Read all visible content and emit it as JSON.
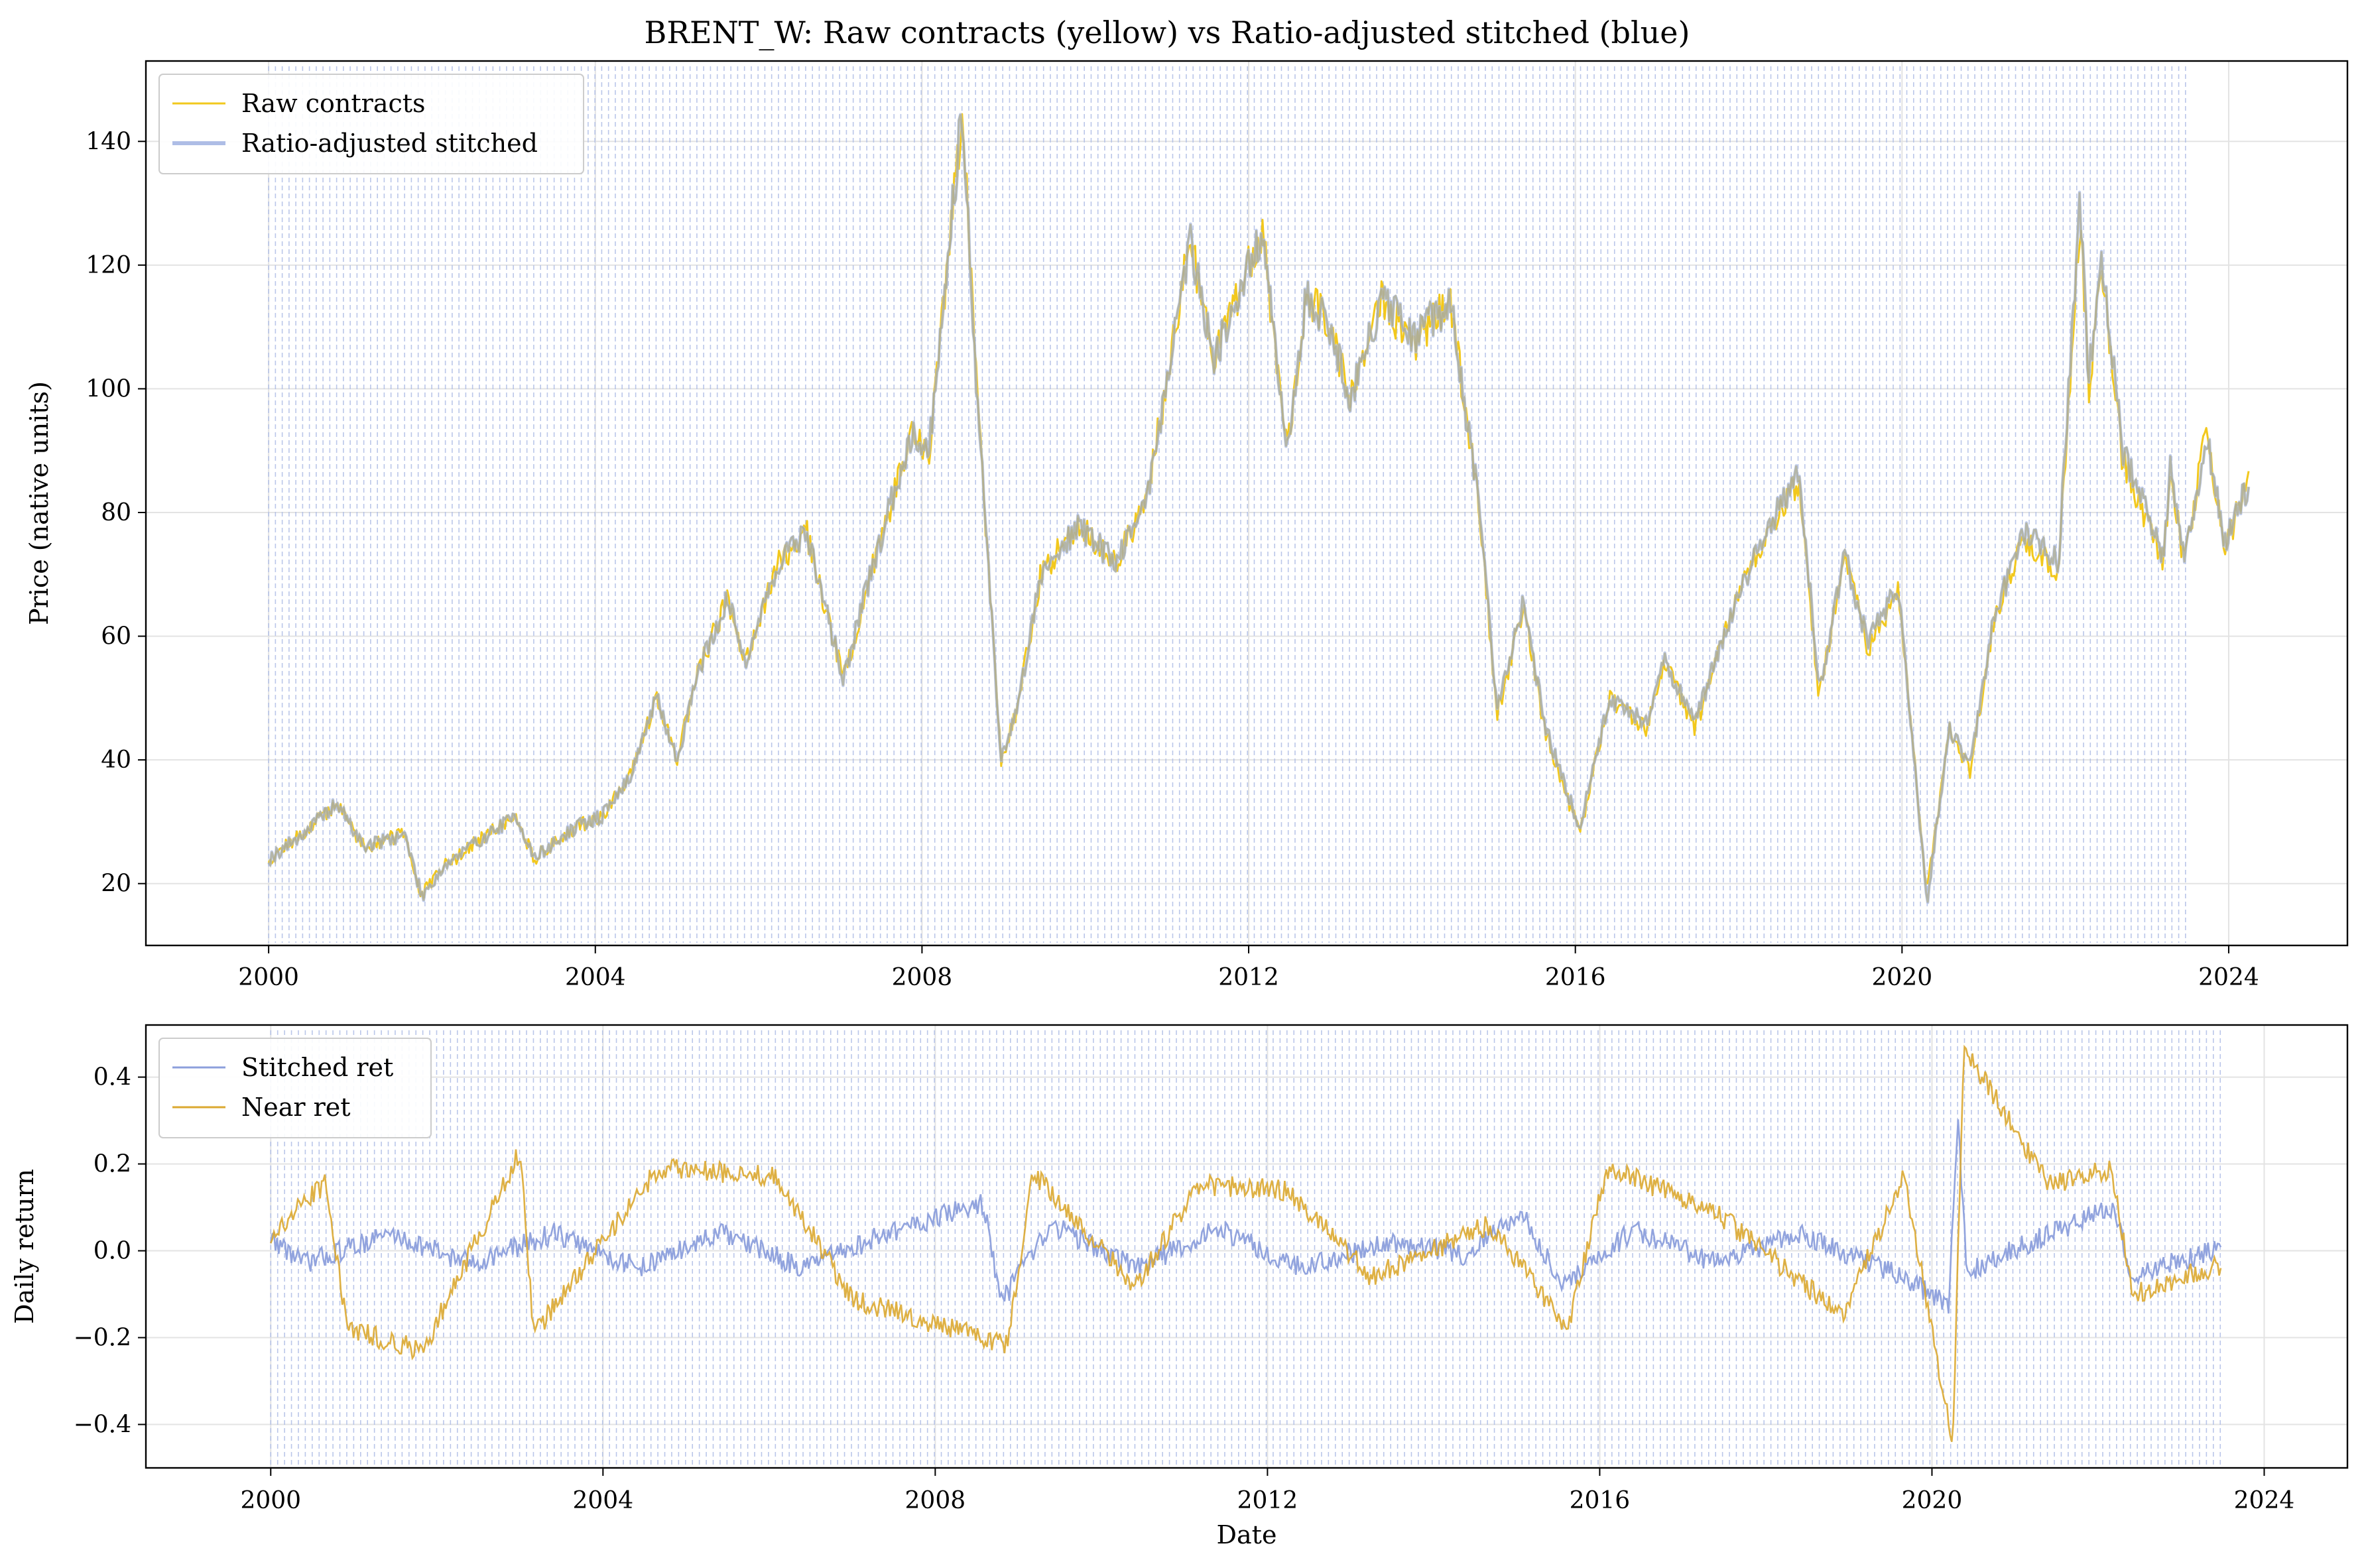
{
  "figure": {
    "title": "BRENT_W: Raw contracts (yellow) vs Ratio-adjusted stitched (blue)"
  },
  "chart_data": [
    {
      "type": "line",
      "panel": "top",
      "title": "BRENT_W: Raw contracts (yellow) vs Ratio-adjusted stitched (blue)",
      "xlabel": "",
      "ylabel": "Price (native units)",
      "xlim": [
        "1998-07-01",
        "2025-06-15"
      ],
      "ylim": [
        10,
        153
      ],
      "x_ticks": [
        "2000",
        "2004",
        "2008",
        "2012",
        "2016",
        "2020",
        "2024"
      ],
      "y_ticks": [
        "20",
        "40",
        "60",
        "80",
        "100",
        "120",
        "140"
      ],
      "grid": true,
      "legend_position": "top-left",
      "roll_markers": {
        "start": "2000-01-01",
        "end": "2023-06-30",
        "style": "dashed",
        "color": "#aebde6"
      },
      "colors": {
        "raw": "#f2c81d",
        "stitched": "#aebde6",
        "overlap": "#a9a372"
      },
      "series": [
        {
          "name": "Raw contracts",
          "color": "#f2c81d",
          "points": [
            [
              "2000-01-01",
              24
            ],
            [
              "2000-06-01",
              28
            ],
            [
              "2000-11-01",
              33
            ],
            [
              "2001-03-01",
              26
            ],
            [
              "2001-09-01",
              28
            ],
            [
              "2001-11-15",
              18
            ],
            [
              "2002-03-01",
              23
            ],
            [
              "2002-08-01",
              27
            ],
            [
              "2003-01-15",
              31
            ],
            [
              "2003-04-01",
              24
            ],
            [
              "2003-10-01",
              29
            ],
            [
              "2004-02-01",
              31
            ],
            [
              "2004-06-01",
              37
            ],
            [
              "2004-10-01",
              50
            ],
            [
              "2005-01-01",
              40
            ],
            [
              "2005-04-01",
              54
            ],
            [
              "2005-08-15",
              66
            ],
            [
              "2005-11-01",
              56
            ],
            [
              "2006-04-01",
              72
            ],
            [
              "2006-08-01",
              77
            ],
            [
              "2007-01-15",
              53
            ],
            [
              "2007-05-01",
              68
            ],
            [
              "2007-11-15",
              93
            ],
            [
              "2008-02-01",
              90
            ],
            [
              "2008-07-01",
              145
            ],
            [
              "2008-09-01",
              100
            ],
            [
              "2008-12-20",
              40
            ],
            [
              "2009-03-01",
              48
            ],
            [
              "2009-06-15",
              70
            ],
            [
              "2009-12-01",
              78
            ],
            [
              "2010-05-15",
              72
            ],
            [
              "2010-10-01",
              82
            ],
            [
              "2011-04-15",
              124
            ],
            [
              "2011-08-01",
              105
            ],
            [
              "2012-03-01",
              126
            ],
            [
              "2012-06-20",
              90
            ],
            [
              "2012-09-15",
              115
            ],
            [
              "2013-01-01",
              110
            ],
            [
              "2013-04-01",
              98
            ],
            [
              "2013-08-20",
              115
            ],
            [
              "2014-01-01",
              107
            ],
            [
              "2014-06-20",
              114
            ],
            [
              "2014-11-01",
              80
            ],
            [
              "2015-01-15",
              47
            ],
            [
              "2015-05-15",
              65
            ],
            [
              "2015-08-15",
              45
            ],
            [
              "2016-01-20",
              28
            ],
            [
              "2016-06-01",
              50
            ],
            [
              "2016-11-15",
              45
            ],
            [
              "2017-02-01",
              56
            ],
            [
              "2017-06-20",
              45
            ],
            [
              "2017-12-01",
              64
            ],
            [
              "2018-05-15",
              78
            ],
            [
              "2018-10-01",
              85
            ],
            [
              "2018-12-25",
              50
            ],
            [
              "2019-04-20",
              73
            ],
            [
              "2019-08-01",
              58
            ],
            [
              "2019-12-15",
              67
            ],
            [
              "2020-04-21",
              19
            ],
            [
              "2020-08-01",
              45
            ],
            [
              "2020-11-01",
              38
            ],
            [
              "2021-02-15",
              63
            ],
            [
              "2021-07-01",
              76
            ],
            [
              "2021-12-01",
              70
            ],
            [
              "2022-03-08",
              128
            ],
            [
              "2022-04-15",
              100
            ],
            [
              "2022-06-10",
              120
            ],
            [
              "2022-09-15",
              88
            ],
            [
              "2023-03-15",
              72
            ],
            [
              "2023-04-15",
              86
            ],
            [
              "2023-06-15",
              72
            ],
            [
              "2023-09-25",
              93
            ],
            [
              "2023-12-15",
              74
            ],
            [
              "2024-04-01",
              86
            ]
          ]
        },
        {
          "name": "Ratio-adjusted stitched",
          "color": "#aebde6",
          "points": [
            [
              "2000-01-01",
              24
            ],
            [
              "2000-06-01",
              28
            ],
            [
              "2000-11-01",
              33
            ],
            [
              "2001-03-01",
              26
            ],
            [
              "2001-09-01",
              28
            ],
            [
              "2001-11-15",
              18
            ],
            [
              "2002-03-01",
              23
            ],
            [
              "2002-08-01",
              27
            ],
            [
              "2003-01-15",
              31
            ],
            [
              "2003-04-01",
              24
            ],
            [
              "2003-10-01",
              29
            ],
            [
              "2004-02-01",
              31
            ],
            [
              "2004-06-01",
              37
            ],
            [
              "2004-10-01",
              50
            ],
            [
              "2005-01-01",
              40
            ],
            [
              "2005-04-01",
              54
            ],
            [
              "2005-08-15",
              66
            ],
            [
              "2005-11-01",
              56
            ],
            [
              "2006-04-01",
              72
            ],
            [
              "2006-08-01",
              77
            ],
            [
              "2007-01-15",
              53
            ],
            [
              "2007-05-01",
              68
            ],
            [
              "2007-11-15",
              93
            ],
            [
              "2008-02-01",
              90
            ],
            [
              "2008-07-01",
              146
            ],
            [
              "2008-09-01",
              100
            ],
            [
              "2008-12-20",
              40
            ],
            [
              "2009-03-01",
              48
            ],
            [
              "2009-06-15",
              70
            ],
            [
              "2009-12-01",
              78
            ],
            [
              "2010-05-15",
              72
            ],
            [
              "2010-10-01",
              82
            ],
            [
              "2011-04-15",
              124
            ],
            [
              "2011-08-01",
              105
            ],
            [
              "2012-03-01",
              125
            ],
            [
              "2012-06-20",
              90
            ],
            [
              "2012-09-15",
              115
            ],
            [
              "2013-01-01",
              110
            ],
            [
              "2013-04-01",
              98
            ],
            [
              "2013-08-20",
              115
            ],
            [
              "2014-01-01",
              108
            ],
            [
              "2014-06-20",
              114
            ],
            [
              "2014-11-01",
              80
            ],
            [
              "2015-01-15",
              48
            ],
            [
              "2015-05-15",
              66
            ],
            [
              "2015-08-15",
              46
            ],
            [
              "2016-01-20",
              29
            ],
            [
              "2016-06-01",
              50
            ],
            [
              "2016-11-15",
              46
            ],
            [
              "2017-02-01",
              56
            ],
            [
              "2017-06-20",
              46
            ],
            [
              "2017-12-01",
              64
            ],
            [
              "2018-05-15",
              78
            ],
            [
              "2018-10-01",
              86
            ],
            [
              "2018-12-25",
              51
            ],
            [
              "2019-04-20",
              73
            ],
            [
              "2019-08-01",
              59
            ],
            [
              "2019-12-15",
              68
            ],
            [
              "2020-04-21",
              17
            ],
            [
              "2020-08-01",
              45
            ],
            [
              "2020-11-01",
              39
            ],
            [
              "2021-02-15",
              63
            ],
            [
              "2021-07-01",
              77
            ],
            [
              "2021-12-01",
              72
            ],
            [
              "2022-03-08",
              131
            ],
            [
              "2022-04-15",
              102
            ],
            [
              "2022-06-10",
              121
            ],
            [
              "2022-09-15",
              90
            ],
            [
              "2023-03-15",
              73
            ],
            [
              "2023-04-15",
              87
            ],
            [
              "2023-06-15",
              73
            ],
            [
              "2023-09-25",
              92
            ],
            [
              "2023-12-15",
              75
            ],
            [
              "2024-04-01",
              85
            ]
          ]
        }
      ]
    },
    {
      "type": "line",
      "panel": "bottom",
      "title": "",
      "xlabel": "Date",
      "ylabel": "Daily return",
      "xlim": [
        "1998-07-01",
        "2025-01-01"
      ],
      "ylim": [
        -0.5,
        0.52
      ],
      "x_ticks": [
        "2000",
        "2004",
        "2008",
        "2012",
        "2016",
        "2020",
        "2024"
      ],
      "y_ticks": [
        "−0.4",
        "−0.2",
        "0.0",
        "0.2",
        "0.4"
      ],
      "grid": true,
      "legend_position": "top-left",
      "roll_markers": {
        "start": "2000-01-01",
        "end": "2023-06-30",
        "style": "dashed",
        "color": "#aebde6"
      },
      "series": [
        {
          "name": "Stitched ret",
          "color": "#8c9fdc",
          "points": [
            [
              "2000-01-01",
              0.03
            ],
            [
              "2000-06-01",
              -0.03
            ],
            [
              "2001-06-01",
              0.04
            ],
            [
              "2002-06-01",
              -0.03
            ],
            [
              "2003-06-01",
              0.04
            ],
            [
              "2004-06-01",
              -0.04
            ],
            [
              "2005-06-01",
              0.04
            ],
            [
              "2006-06-01",
              -0.04
            ],
            [
              "2007-06-01",
              0.04
            ],
            [
              "2008-08-01",
              0.11
            ],
            [
              "2008-10-15",
              -0.12
            ],
            [
              "2009-06-01",
              0.06
            ],
            [
              "2010-06-01",
              -0.04
            ],
            [
              "2011-06-01",
              0.05
            ],
            [
              "2012-06-01",
              -0.04
            ],
            [
              "2013-06-01",
              0.02
            ],
            [
              "2014-06-01",
              -0.01
            ],
            [
              "2015-01-15",
              0.09
            ],
            [
              "2015-08-01",
              -0.08
            ],
            [
              "2016-06-01",
              0.05
            ],
            [
              "2017-06-01",
              -0.03
            ],
            [
              "2018-06-01",
              0.04
            ],
            [
              "2019-06-01",
              -0.04
            ],
            [
              "2020-03-15",
              -0.12
            ],
            [
              "2020-04-25",
              0.31
            ],
            [
              "2020-06-01",
              -0.05
            ],
            [
              "2021-06-01",
              0.04
            ],
            [
              "2022-03-08",
              0.1
            ],
            [
              "2022-06-01",
              -0.06
            ],
            [
              "2023-06-30",
              0.01
            ]
          ]
        },
        {
          "name": "Near ret",
          "color": "#dba830",
          "points": [
            [
              "2000-01-01",
              0.03
            ],
            [
              "2000-09-01",
              0.16
            ],
            [
              "2000-12-01",
              -0.18
            ],
            [
              "2001-11-01",
              -0.23
            ],
            [
              "2003-01-01",
              0.23
            ],
            [
              "2003-03-01",
              -0.19
            ],
            [
              "2004-09-01",
              0.19
            ],
            [
              "2006-02-01",
              0.17
            ],
            [
              "2007-01-01",
              -0.11
            ],
            [
              "2008-11-15",
              -0.22
            ],
            [
              "2009-03-01",
              0.18
            ],
            [
              "2010-06-01",
              -0.08
            ],
            [
              "2011-03-01",
              0.15
            ],
            [
              "2012-04-01",
              0.14
            ],
            [
              "2013-04-01",
              -0.06
            ],
            [
              "2014-09-01",
              0.06
            ],
            [
              "2015-08-15",
              -0.18
            ],
            [
              "2016-02-01",
              0.19
            ],
            [
              "2017-05-01",
              0.1
            ],
            [
              "2018-12-01",
              -0.15
            ],
            [
              "2019-09-01",
              0.17
            ],
            [
              "2020-04-01",
              -0.45
            ],
            [
              "2020-05-20",
              0.47
            ],
            [
              "2021-06-01",
              0.15
            ],
            [
              "2022-03-01",
              0.19
            ],
            [
              "2022-06-01",
              -0.1
            ],
            [
              "2023-06-30",
              -0.03
            ]
          ]
        }
      ]
    }
  ]
}
